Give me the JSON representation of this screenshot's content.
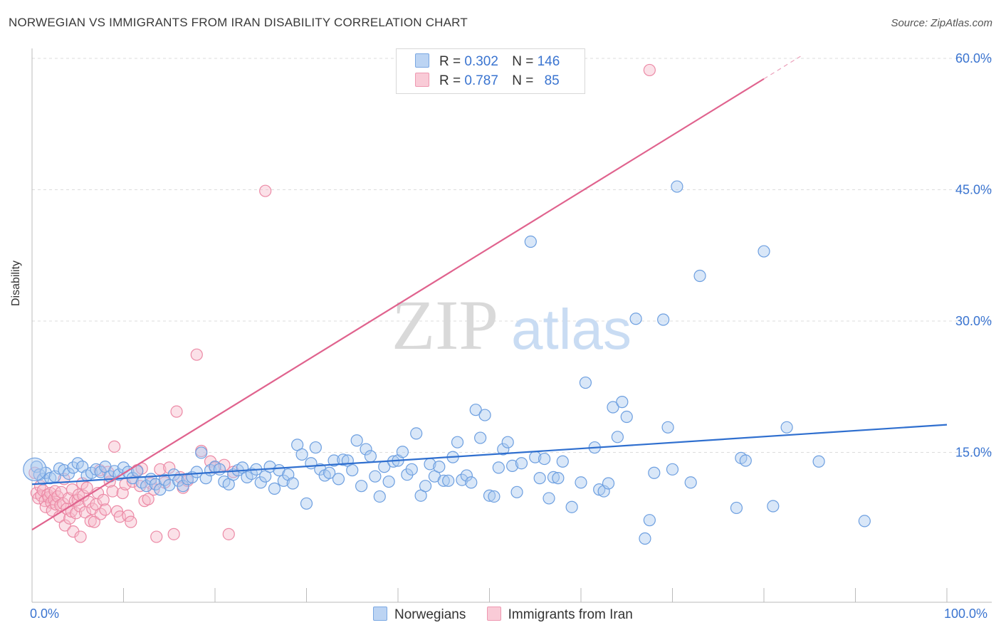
{
  "title": "NORWEGIAN VS IMMIGRANTS FROM IRAN DISABILITY CORRELATION CHART",
  "source": "Source: ZipAtlas.com",
  "watermark": {
    "zip": "ZIP",
    "atlas": "atlas"
  },
  "legend": {
    "rows": [
      {
        "r_label": "R =",
        "r_value": "0.302",
        "n_label": "N =",
        "n_value": "146",
        "color": "#a8c8f0"
      },
      {
        "r_label": "R =",
        "r_value": "0.787",
        "n_label": "N =",
        "n_value": "85",
        "color": "#f6b8c8"
      }
    ],
    "series_names": [
      "Norwegians",
      "Immigrants from Iran"
    ]
  },
  "colors": {
    "blue_fill": "#aac9f0",
    "blue_stroke": "#6d9fe0",
    "blue_line": "#2f6fcf",
    "pink_fill": "#f7bccb",
    "pink_stroke": "#ec8aa6",
    "pink_line": "#e0638e",
    "tick_label": "#3a74d0",
    "grid": "#dddddd"
  },
  "chart_data": {
    "type": "scatter",
    "title": "NORWEGIAN VS IMMIGRANTS FROM IRAN DISABILITY CORRELATION CHART",
    "xlabel": "",
    "ylabel": "Disability",
    "xlim": [
      0,
      100
    ],
    "ylim": [
      0,
      60
    ],
    "x_tick_labels": [
      "0.0%",
      "100.0%"
    ],
    "y_ticks": [
      15,
      30,
      45,
      60
    ],
    "y_tick_labels": [
      "15.0%",
      "30.0%",
      "45.0%",
      "60.0%"
    ],
    "grid": true,
    "series": [
      {
        "name": "Norwegians",
        "r": 0.302,
        "n": 146,
        "trend": {
          "x0": 0,
          "y0": 11.2,
          "x1": 100,
          "y1": 18.0
        },
        "points": [
          [
            0.5,
            13.2
          ],
          [
            0.8,
            12.3
          ],
          [
            1.2,
            11.8
          ],
          [
            1.5,
            12.5
          ],
          [
            2.0,
            11.9
          ],
          [
            2.5,
            12.1
          ],
          [
            3.0,
            13.0
          ],
          [
            3.5,
            12.8
          ],
          [
            4.0,
            12.4
          ],
          [
            4.5,
            13.1
          ],
          [
            5.0,
            13.6
          ],
          [
            5.5,
            13.2
          ],
          [
            6.0,
            12.2
          ],
          [
            6.5,
            12.5
          ],
          [
            7.0,
            12.9
          ],
          [
            7.5,
            12.6
          ],
          [
            8.0,
            13.2
          ],
          [
            8.5,
            12.1
          ],
          [
            9.0,
            12.7
          ],
          [
            9.5,
            12.3
          ],
          [
            10.0,
            13.1
          ],
          [
            10.5,
            12.6
          ],
          [
            11.0,
            11.9
          ],
          [
            11.5,
            12.7
          ],
          [
            12.0,
            11.4
          ],
          [
            12.5,
            11.0
          ],
          [
            13.0,
            11.8
          ],
          [
            13.5,
            11.2
          ],
          [
            14.0,
            10.6
          ],
          [
            14.5,
            11.7
          ],
          [
            15.0,
            11.1
          ],
          [
            15.5,
            12.3
          ],
          [
            16.0,
            11.6
          ],
          [
            16.5,
            11.0
          ],
          [
            17.0,
            11.8
          ],
          [
            17.5,
            12.0
          ],
          [
            18.0,
            12.6
          ],
          [
            18.5,
            14.8
          ],
          [
            19.0,
            11.9
          ],
          [
            19.5,
            12.8
          ],
          [
            20.0,
            13.2
          ],
          [
            20.5,
            12.9
          ],
          [
            21.0,
            11.5
          ],
          [
            21.5,
            11.2
          ],
          [
            22.0,
            12.3
          ],
          [
            22.5,
            12.8
          ],
          [
            23.0,
            13.1
          ],
          [
            23.5,
            12.0
          ],
          [
            24.0,
            12.4
          ],
          [
            24.5,
            12.9
          ],
          [
            25.0,
            11.4
          ],
          [
            25.5,
            12.1
          ],
          [
            26.0,
            13.2
          ],
          [
            26.5,
            10.7
          ],
          [
            27.0,
            12.8
          ],
          [
            27.5,
            11.6
          ],
          [
            28.0,
            12.3
          ],
          [
            28.5,
            11.3
          ],
          [
            29.0,
            15.7
          ],
          [
            29.5,
            14.6
          ],
          [
            30.0,
            9.0
          ],
          [
            30.5,
            13.6
          ],
          [
            31.0,
            15.4
          ],
          [
            31.5,
            12.9
          ],
          [
            32.0,
            12.2
          ],
          [
            32.5,
            12.5
          ],
          [
            33.0,
            13.9
          ],
          [
            33.5,
            11.8
          ],
          [
            34.0,
            14.0
          ],
          [
            34.5,
            13.9
          ],
          [
            35.0,
            12.8
          ],
          [
            35.5,
            16.2
          ],
          [
            36.0,
            11.0
          ],
          [
            36.5,
            15.2
          ],
          [
            37.0,
            14.4
          ],
          [
            37.5,
            12.1
          ],
          [
            38.0,
            9.8
          ],
          [
            38.5,
            13.2
          ],
          [
            39.0,
            11.5
          ],
          [
            39.5,
            13.8
          ],
          [
            40.0,
            13.9
          ],
          [
            40.5,
            14.9
          ],
          [
            41.0,
            12.3
          ],
          [
            41.5,
            12.9
          ],
          [
            42.0,
            17.0
          ],
          [
            42.5,
            9.9
          ],
          [
            43.0,
            11.0
          ],
          [
            43.5,
            13.5
          ],
          [
            44.0,
            12.1
          ],
          [
            44.5,
            13.2
          ],
          [
            45.0,
            11.6
          ],
          [
            45.5,
            11.6
          ],
          [
            46.0,
            14.3
          ],
          [
            46.5,
            16.0
          ],
          [
            47.0,
            11.7
          ],
          [
            47.5,
            12.2
          ],
          [
            48.0,
            11.4
          ],
          [
            48.5,
            19.7
          ],
          [
            49.0,
            16.5
          ],
          [
            49.5,
            19.1
          ],
          [
            50.0,
            9.9
          ],
          [
            50.5,
            9.8
          ],
          [
            51.0,
            13.1
          ],
          [
            51.5,
            15.2
          ],
          [
            52.0,
            16.0
          ],
          [
            52.5,
            13.3
          ],
          [
            53.0,
            10.3
          ],
          [
            53.5,
            13.6
          ],
          [
            54.5,
            38.9
          ],
          [
            55.0,
            14.3
          ],
          [
            55.5,
            11.9
          ],
          [
            56.0,
            14.1
          ],
          [
            56.5,
            9.6
          ],
          [
            57.0,
            12.0
          ],
          [
            57.5,
            11.9
          ],
          [
            58.0,
            13.8
          ],
          [
            59.0,
            8.6
          ],
          [
            60.0,
            11.4
          ],
          [
            60.5,
            22.8
          ],
          [
            61.5,
            15.4
          ],
          [
            62.0,
            10.6
          ],
          [
            62.5,
            10.4
          ],
          [
            63.0,
            11.3
          ],
          [
            63.5,
            20.0
          ],
          [
            64.0,
            16.6
          ],
          [
            64.5,
            20.6
          ],
          [
            65.0,
            18.9
          ],
          [
            66.0,
            30.1
          ],
          [
            67.0,
            5.0
          ],
          [
            67.5,
            7.1
          ],
          [
            68.0,
            12.5
          ],
          [
            69.0,
            30.0
          ],
          [
            69.5,
            17.7
          ],
          [
            70.0,
            12.9
          ],
          [
            70.5,
            45.2
          ],
          [
            72.0,
            11.4
          ],
          [
            73.0,
            35.0
          ],
          [
            77.0,
            8.5
          ],
          [
            77.5,
            14.2
          ],
          [
            78.0,
            13.9
          ],
          [
            80.0,
            37.8
          ],
          [
            81.0,
            8.7
          ],
          [
            82.5,
            17.7
          ],
          [
            86.0,
            13.8
          ],
          [
            91.0,
            7.0
          ],
          [
            0.3,
            12.9
          ]
        ]
      },
      {
        "name": "Immigrants from Iran",
        "r": 0.787,
        "n": 85,
        "trend": {
          "x0": 0,
          "y0": 6.0,
          "x1": 80,
          "y1": 57.5
        },
        "points": [
          [
            0.3,
            12.5
          ],
          [
            0.5,
            10.2
          ],
          [
            0.7,
            9.6
          ],
          [
            0.9,
            11.0
          ],
          [
            1.0,
            9.9
          ],
          [
            1.2,
            10.5
          ],
          [
            1.4,
            9.3
          ],
          [
            1.5,
            8.6
          ],
          [
            1.7,
            10.0
          ],
          [
            1.8,
            9.7
          ],
          [
            2.0,
            10.2
          ],
          [
            2.1,
            9.1
          ],
          [
            2.2,
            8.2
          ],
          [
            2.4,
            9.5
          ],
          [
            2.5,
            10.4
          ],
          [
            2.6,
            8.9
          ],
          [
            2.8,
            9.8
          ],
          [
            3.0,
            7.5
          ],
          [
            3.1,
            8.8
          ],
          [
            3.2,
            10.3
          ],
          [
            3.4,
            9.0
          ],
          [
            3.5,
            11.8
          ],
          [
            3.6,
            6.5
          ],
          [
            3.8,
            8.4
          ],
          [
            4.0,
            9.6
          ],
          [
            4.1,
            7.3
          ],
          [
            4.3,
            8.1
          ],
          [
            4.4,
            10.6
          ],
          [
            4.5,
            5.8
          ],
          [
            4.7,
            9.3
          ],
          [
            4.8,
            7.9
          ],
          [
            5.0,
            9.4
          ],
          [
            5.1,
            10.0
          ],
          [
            5.2,
            8.7
          ],
          [
            5.3,
            5.2
          ],
          [
            5.5,
            11.3
          ],
          [
            5.6,
            9.9
          ],
          [
            5.8,
            8.0
          ],
          [
            6.0,
            10.8
          ],
          [
            6.2,
            9.2
          ],
          [
            6.4,
            7.0
          ],
          [
            6.6,
            8.4
          ],
          [
            6.8,
            6.9
          ],
          [
            7.0,
            8.9
          ],
          [
            7.2,
            10.2
          ],
          [
            7.4,
            12.8
          ],
          [
            7.5,
            7.8
          ],
          [
            7.8,
            9.4
          ],
          [
            8.0,
            8.3
          ],
          [
            8.3,
            12.6
          ],
          [
            8.5,
            11.5
          ],
          [
            8.8,
            10.4
          ],
          [
            9.0,
            15.5
          ],
          [
            9.3,
            8.1
          ],
          [
            9.6,
            7.5
          ],
          [
            9.9,
            10.2
          ],
          [
            10.2,
            11.2
          ],
          [
            10.5,
            7.6
          ],
          [
            10.8,
            6.9
          ],
          [
            11.0,
            11.5
          ],
          [
            11.5,
            12.8
          ],
          [
            11.8,
            11.0
          ],
          [
            12.0,
            13.0
          ],
          [
            12.3,
            9.3
          ],
          [
            12.7,
            9.5
          ],
          [
            13.0,
            11.3
          ],
          [
            13.3,
            10.6
          ],
          [
            13.6,
            5.2
          ],
          [
            14.0,
            12.9
          ],
          [
            14.5,
            11.4
          ],
          [
            15.0,
            13.1
          ],
          [
            15.5,
            5.5
          ],
          [
            15.8,
            19.5
          ],
          [
            16.2,
            12.0
          ],
          [
            16.5,
            10.8
          ],
          [
            17.0,
            11.6
          ],
          [
            18.0,
            26.0
          ],
          [
            18.5,
            15.0
          ],
          [
            19.5,
            13.8
          ],
          [
            20.0,
            13.1
          ],
          [
            21.0,
            13.4
          ],
          [
            21.5,
            5.5
          ],
          [
            25.5,
            44.7
          ],
          [
            67.5,
            58.5
          ],
          [
            22.0,
            12.6
          ]
        ]
      }
    ]
  }
}
